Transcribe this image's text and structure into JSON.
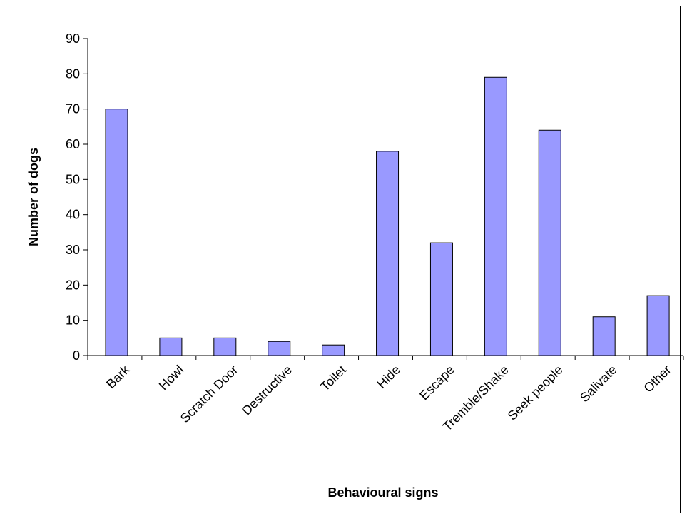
{
  "chart_data": {
    "type": "bar",
    "title": "",
    "xlabel": "Behavioural signs",
    "ylabel": "Number of dogs",
    "categories": [
      "Bark",
      "Howl",
      "Scratch Door",
      "Destructive",
      "Toilet",
      "Hide",
      "Escape",
      "Tremble/Shake",
      "Seek people",
      "Salivate",
      "Other"
    ],
    "values": [
      70,
      5,
      5,
      4,
      3,
      58,
      32,
      79,
      64,
      11,
      17
    ],
    "ylim": [
      0,
      90
    ],
    "yticks": [
      0,
      10,
      20,
      30,
      40,
      50,
      60,
      70,
      80,
      90
    ],
    "grid": false,
    "legend": "none",
    "colors": {
      "bar_fill": "#9999ff",
      "bar_stroke": "#000000",
      "axis": "#000000"
    }
  }
}
